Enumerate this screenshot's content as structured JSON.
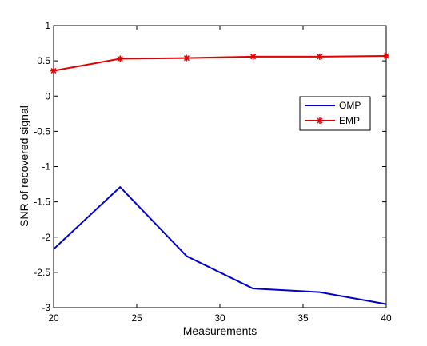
{
  "chart_data": {
    "type": "line",
    "title": "",
    "xlabel": "Measurements",
    "ylabel": "SNR of recovered signal",
    "xlim": [
      20,
      40
    ],
    "ylim": [
      -3,
      1
    ],
    "xticks": [
      20,
      25,
      30,
      35,
      40
    ],
    "yticks": [
      1,
      0.5,
      0,
      -0.5,
      -1,
      -1.5,
      -2,
      -2.5,
      -3
    ],
    "x_tick_labels": [
      "20",
      "25",
      "30",
      "35",
      "40"
    ],
    "y_tick_labels": [
      "1",
      "0.5",
      "0",
      "-0.5",
      "-1",
      "-1.5",
      "-2",
      "-2.5",
      "-3"
    ],
    "grid": false,
    "legend_position": "right",
    "x": [
      20,
      24,
      28,
      32,
      36,
      40
    ],
    "series": [
      {
        "name": "OMP",
        "color": "#0000cc",
        "marker": "none",
        "values": [
          -2.17,
          -1.29,
          -2.27,
          -2.73,
          -2.78,
          -2.95
        ]
      },
      {
        "name": "EMP",
        "color": "#e00000",
        "marker": "star",
        "values": [
          0.36,
          0.53,
          0.54,
          0.56,
          0.56,
          0.57
        ]
      }
    ]
  }
}
